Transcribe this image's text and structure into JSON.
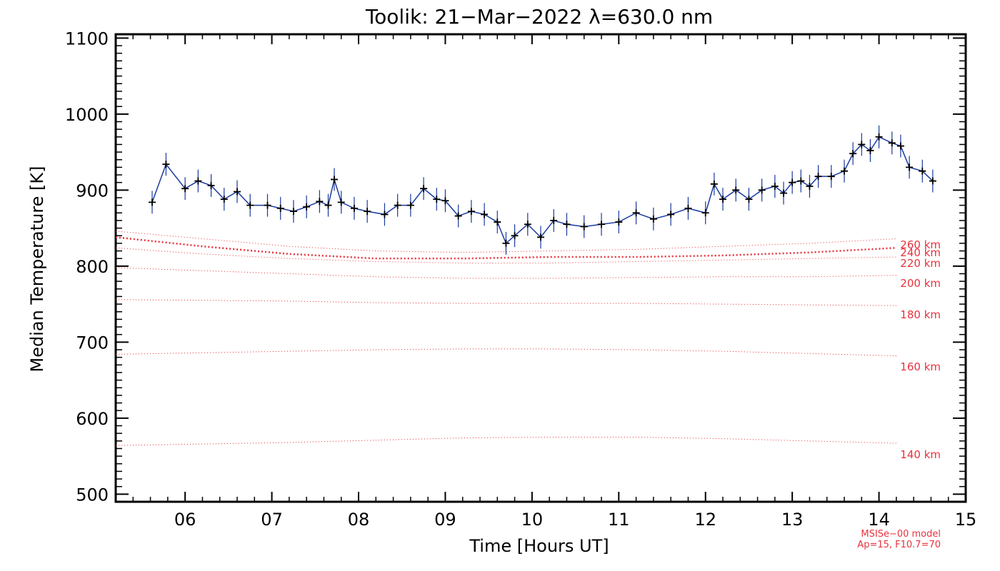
{
  "chart_data": {
    "type": "line",
    "title": "Toolik: 21−Mar−2022 λ=630.0 nm",
    "xlabel": "Time [Hours UT]",
    "ylabel": "Median Temperature [K]",
    "xlim": [
      5.2,
      15.0
    ],
    "ylim": [
      490,
      1105
    ],
    "x_ticks": [
      6,
      7,
      8,
      9,
      10,
      11,
      12,
      13,
      14,
      15
    ],
    "x_tick_labels": [
      "06",
      "07",
      "08",
      "09",
      "10",
      "11",
      "12",
      "13",
      "14",
      "15"
    ],
    "y_ticks": [
      500,
      600,
      700,
      800,
      900,
      1000,
      1100
    ],
    "y_tick_labels": [
      "500",
      "600",
      "700",
      "800",
      "900",
      "1000",
      "1100"
    ],
    "grid": false,
    "series": [
      {
        "color": "#1a3a9e",
        "marker": "+",
        "error_bar_color": "#1a3a9e",
        "line_color": "#000000",
        "x": [
          5.62,
          5.78,
          6.0,
          6.15,
          6.3,
          6.45,
          6.6,
          6.75,
          6.95,
          7.1,
          7.25,
          7.4,
          7.55,
          7.65,
          7.72,
          7.8,
          7.95,
          8.1,
          8.3,
          8.45,
          8.6,
          8.75,
          8.9,
          9.0,
          9.15,
          9.3,
          9.45,
          9.6,
          9.7,
          9.8,
          9.95,
          10.1,
          10.25,
          10.4,
          10.6,
          10.8,
          11.0,
          11.2,
          11.4,
          11.6,
          11.8,
          12.0,
          12.1,
          12.2,
          12.35,
          12.5,
          12.65,
          12.8,
          12.9,
          13.0,
          13.1,
          13.2,
          13.3,
          13.45,
          13.6,
          13.7,
          13.8,
          13.9,
          14.0,
          14.15,
          14.25,
          14.35,
          14.5,
          14.62
        ],
        "y": [
          884,
          934,
          902,
          912,
          906,
          888,
          898,
          880,
          880,
          876,
          872,
          878,
          885,
          880,
          914,
          884,
          876,
          872,
          868,
          880,
          880,
          902,
          888,
          886,
          866,
          872,
          868,
          858,
          830,
          840,
          855,
          838,
          860,
          855,
          852,
          855,
          858,
          870,
          862,
          868,
          876,
          870,
          908,
          888,
          900,
          888,
          900,
          905,
          896,
          910,
          912,
          905,
          918,
          918,
          925,
          948,
          960,
          952,
          970,
          962,
          958,
          930,
          925,
          912
        ],
        "error": 15
      }
    ],
    "model_curves": [
      {
        "label": "260 km",
        "values": [
          838,
          826,
          816,
          810,
          810,
          812,
          812,
          814,
          818,
          824
        ]
      },
      {
        "label": "240 km",
        "values": [
          846,
          836,
          826,
          820,
          818,
          820,
          822,
          826,
          830,
          836
        ]
      },
      {
        "label": "220 km",
        "values": [
          824,
          816,
          810,
          806,
          804,
          804,
          806,
          808,
          810,
          812
        ]
      },
      {
        "label": "200 km",
        "values": [
          798,
          794,
          790,
          786,
          784,
          784,
          785,
          786,
          786,
          788
        ]
      },
      {
        "label": "180 km",
        "values": [
          756,
          755,
          754,
          752,
          751,
          751,
          751,
          750,
          749,
          748
        ]
      },
      {
        "label": "160 km",
        "values": [
          684,
          686,
          688,
          690,
          691,
          691,
          690,
          688,
          685,
          682
        ]
      },
      {
        "label": "140 km",
        "values": [
          564,
          566,
          568,
          571,
          574,
          575,
          575,
          573,
          570,
          567
        ]
      }
    ],
    "model_curve_x": [
      5.2,
      6.2,
      7.2,
      8.2,
      9.2,
      10.2,
      11.2,
      12.2,
      13.2,
      14.2
    ],
    "model_note": [
      "MSISe−00 model",
      "Ap=15, F10.7=70"
    ]
  }
}
